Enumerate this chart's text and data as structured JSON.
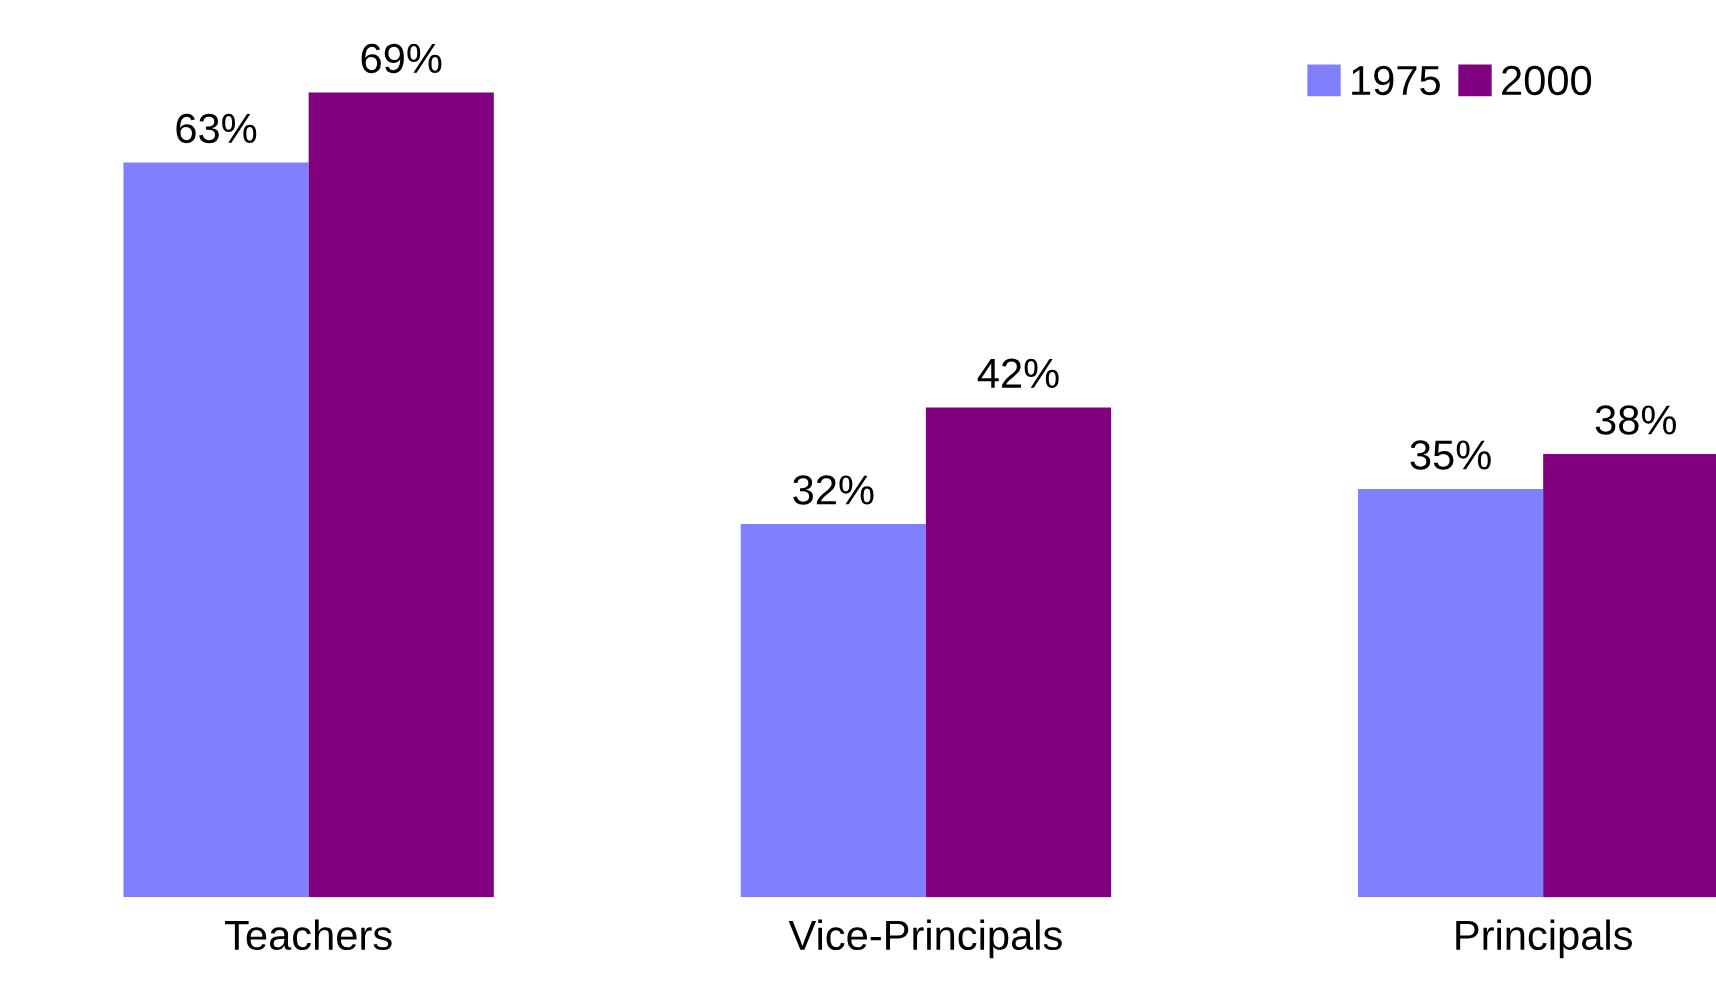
{
  "chart_data": {
    "type": "bar",
    "categories": [
      "Teachers",
      "Vice-Principals",
      "Principals"
    ],
    "series": [
      {
        "name": "1975",
        "color": "#8080ff",
        "values": [
          63,
          32,
          35
        ],
        "value_labels": [
          "63%",
          "32%",
          "35%"
        ]
      },
      {
        "name": "2000",
        "color": "#800080",
        "values": [
          69,
          42,
          38
        ],
        "value_labels": [
          "69%",
          "42%",
          "38%"
        ]
      }
    ],
    "legend": "top right",
    "grid": false
  }
}
